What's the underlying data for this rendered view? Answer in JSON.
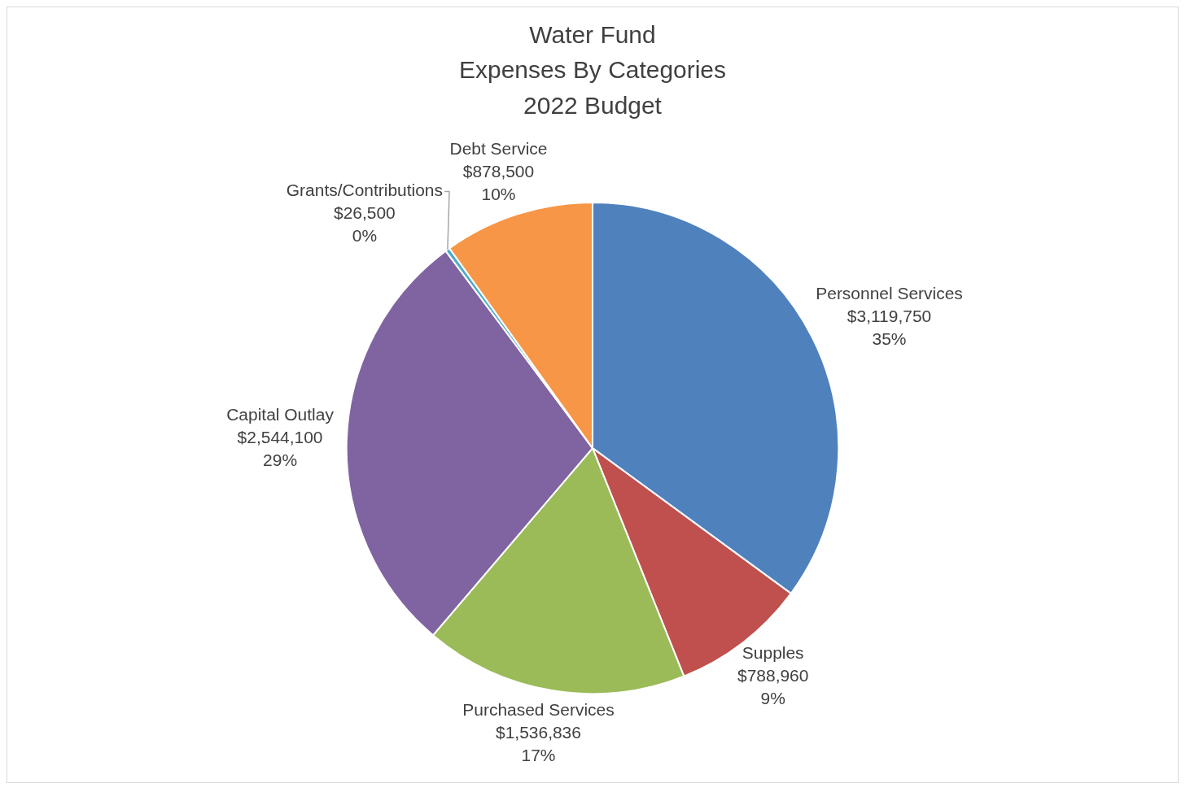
{
  "chart_data": {
    "type": "pie",
    "title": "Water Fund\nExpenses By Categories\n2022 Budget",
    "categories": [
      "Personnel Services",
      "Supples",
      "Purchased Services",
      "Capital Outlay",
      "Grants/Contributions",
      "Debt Service"
    ],
    "values": [
      3119750,
      788960,
      1536836,
      2544100,
      26500,
      878500
    ],
    "value_labels": [
      "$3,119,750\n35%",
      "$788,960\n9%",
      "$1,536,836\n17%",
      "$2,544,100\n29%",
      "$26,500\n0%",
      "$878,500\n10%"
    ],
    "colors": [
      "#4f81bd",
      "#c0504d",
      "#9bbb59",
      "#8064a2",
      "#4bacc6",
      "#f79646"
    ],
    "legend": false
  }
}
